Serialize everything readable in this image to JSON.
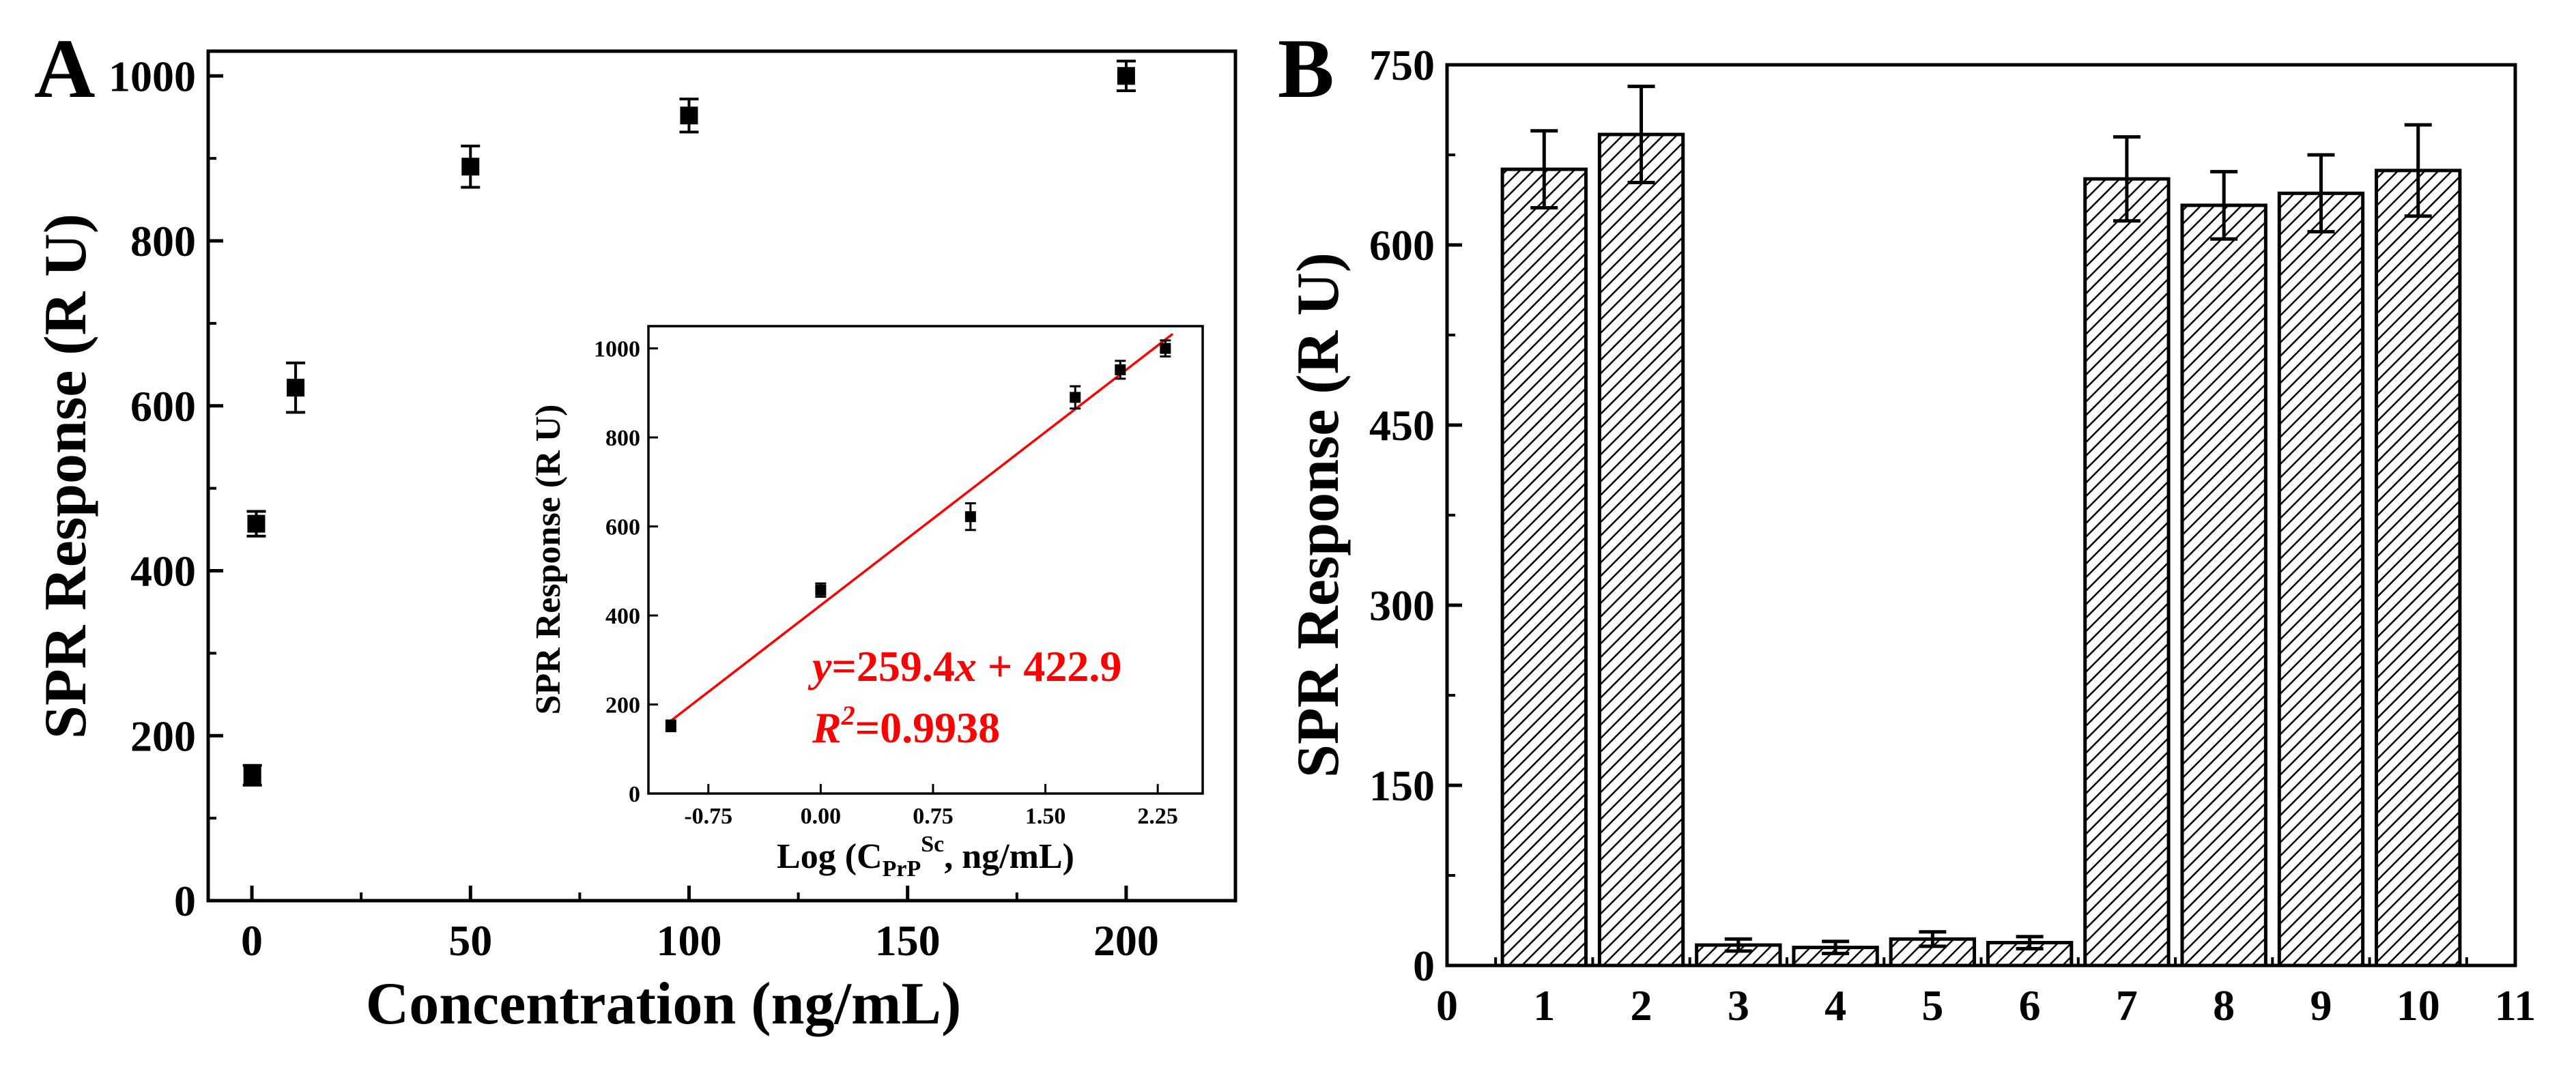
{
  "chart_data": [
    {
      "panel_label": "A",
      "type": "scatter",
      "title": "",
      "xlabel": "Concentration (ng/mL)",
      "ylabel": "SPR Response (R U)",
      "xlim": [
        -10,
        225
      ],
      "ylim": [
        0,
        1030
      ],
      "xticks": [
        0,
        50,
        100,
        150,
        200
      ],
      "yticks": [
        0,
        200,
        400,
        600,
        800,
        1000
      ],
      "grid": false,
      "series": [
        {
          "name": "SPR response",
          "points": [
            {
              "x": 0.1,
              "y": 152,
              "err": 12
            },
            {
              "x": 1,
              "y": 457,
              "err": 15
            },
            {
              "x": 10,
              "y": 622,
              "err": 30
            },
            {
              "x": 50,
              "y": 890,
              "err": 25
            },
            {
              "x": 100,
              "y": 952,
              "err": 20
            },
            {
              "x": 200,
              "y": 1000,
              "err": 18
            }
          ]
        }
      ],
      "inset": {
        "type": "scatter",
        "xlabel_prefix": "Log (C",
        "xlabel_sub": "PrP",
        "xlabel_sup": "Sc",
        "xlabel_suffix": ", ng/mL)",
        "ylabel": "SPR Response (R U)",
        "xlim": [
          -1.15,
          2.55
        ],
        "ylim": [
          0,
          1050
        ],
        "xticks": [
          -0.75,
          0,
          0.75,
          1.5,
          2.25
        ],
        "xtick_labels": [
          "-0.75",
          "0.00",
          "0.75",
          "1.50",
          "2.25"
        ],
        "yticks": [
          0,
          200,
          400,
          600,
          800,
          1000
        ],
        "points": [
          {
            "x": -1.0,
            "y": 152,
            "err": 12
          },
          {
            "x": 0.0,
            "y": 457,
            "err": 15
          },
          {
            "x": 1.0,
            "y": 622,
            "err": 30
          },
          {
            "x": 1.699,
            "y": 890,
            "err": 25
          },
          {
            "x": 2.0,
            "y": 952,
            "err": 20
          },
          {
            "x": 2.301,
            "y": 1000,
            "err": 18
          }
        ],
        "fit": {
          "slope": 259.4,
          "intercept": 422.9,
          "x_range": [
            -1.0,
            2.35
          ],
          "color": "#ff0000"
        },
        "equation_y": "y",
        "equation_slope": "=259.4",
        "equation_x": "x",
        "equation_rest": " + 422.9",
        "r2_letter": "R",
        "r2_sup": "2",
        "r2_value": "=0.9938"
      }
    },
    {
      "panel_label": "B",
      "type": "bar",
      "title": "",
      "xlabel": "",
      "ylabel": "SPR Response (R U)",
      "xlim": [
        0,
        11
      ],
      "ylim": [
        0,
        750
      ],
      "xticks": [
        0,
        1,
        2,
        3,
        4,
        5,
        6,
        7,
        8,
        9,
        10,
        11
      ],
      "yticks": [
        0,
        150,
        300,
        450,
        600,
        750
      ],
      "categories": [
        1,
        2,
        3,
        4,
        5,
        6,
        7,
        8,
        9,
        10
      ],
      "values": [
        663,
        692,
        17,
        15,
        22,
        19,
        655,
        633,
        643,
        662
      ],
      "errors": [
        32,
        40,
        5,
        5,
        6,
        5,
        35,
        28,
        32,
        38
      ],
      "fill": "diagonal-hatch",
      "grid": false
    }
  ],
  "colors": {
    "axis": "#000000",
    "fit_line": "#ff0000",
    "equation": "#ff0000",
    "background": "#ffffff"
  }
}
